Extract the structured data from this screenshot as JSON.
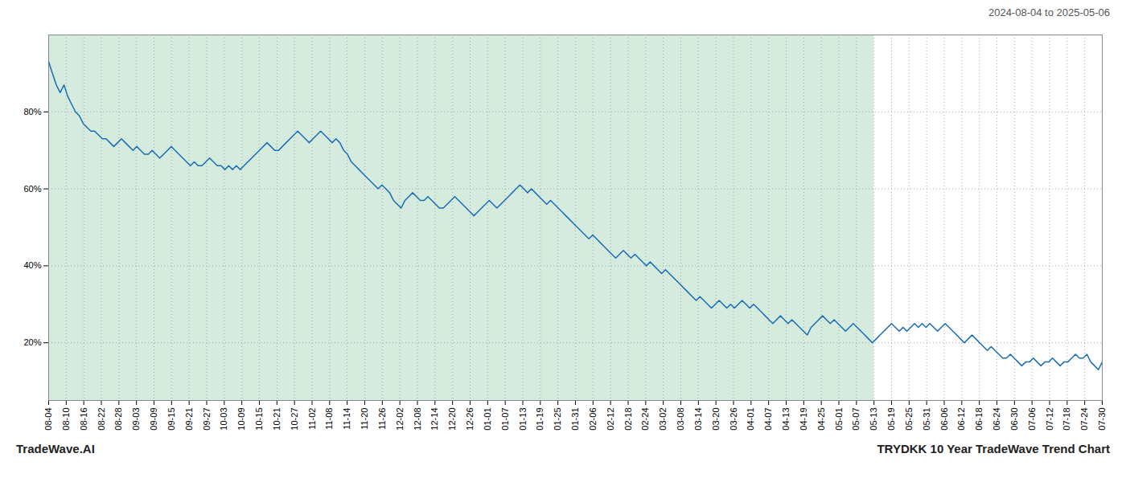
{
  "chart_data": {
    "type": "line",
    "title": "TRYDKK 10 Year TradeWave Trend Chart",
    "subtitle": "2024-08-04 to 2025-05-06",
    "annotation": "TradeWave.AI",
    "color": "#1a6db5",
    "grid": true,
    "ylim": [
      5,
      100
    ],
    "yticks": [
      {
        "value": 20,
        "label": "20%"
      },
      {
        "value": 40,
        "label": "40%"
      },
      {
        "value": 60,
        "label": "60%"
      },
      {
        "value": 80,
        "label": "80%"
      }
    ],
    "xticks": [
      "08-04",
      "08-10",
      "08-16",
      "08-22",
      "08-28",
      "09-03",
      "09-09",
      "09-15",
      "09-21",
      "09-27",
      "10-03",
      "10-09",
      "10-15",
      "10-21",
      "10-27",
      "11-02",
      "11-08",
      "11-14",
      "11-20",
      "11-26",
      "12-02",
      "12-08",
      "12-14",
      "12-20",
      "12-26",
      "01-01",
      "01-07",
      "01-13",
      "01-19",
      "01-25",
      "01-31",
      "02-06",
      "02-12",
      "02-18",
      "02-24",
      "03-02",
      "03-08",
      "03-14",
      "03-20",
      "03-26",
      "04-01",
      "04-07",
      "04-13",
      "04-19",
      "04-25",
      "05-01",
      "05-07",
      "05-13",
      "05-19",
      "05-25",
      "05-31",
      "06-06",
      "06-12",
      "06-18",
      "06-24",
      "06-30",
      "07-06",
      "07-12",
      "07-18",
      "07-24",
      "07-30"
    ],
    "shaded_span": {
      "from": "08-04",
      "to": "05-13",
      "color": "#cce8d8"
    },
    "values": [
      93,
      90,
      87,
      85,
      87,
      84,
      82,
      80,
      79,
      77,
      76,
      75,
      75,
      74,
      73,
      73,
      72,
      71,
      72,
      73,
      72,
      71,
      70,
      71,
      70,
      69,
      69,
      70,
      69,
      68,
      69,
      70,
      71,
      70,
      69,
      68,
      67,
      66,
      67,
      66,
      66,
      67,
      68,
      67,
      66,
      66,
      65,
      66,
      65,
      66,
      65,
      66,
      67,
      68,
      69,
      70,
      71,
      72,
      71,
      70,
      70,
      71,
      72,
      73,
      74,
      75,
      74,
      73,
      72,
      73,
      74,
      75,
      74,
      73,
      72,
      73,
      72,
      70,
      69,
      67,
      66,
      65,
      64,
      63,
      62,
      61,
      60,
      61,
      60,
      59,
      57,
      56,
      55,
      57,
      58,
      59,
      58,
      57,
      57,
      58,
      57,
      56,
      55,
      55,
      56,
      57,
      58,
      57,
      56,
      55,
      54,
      53,
      54,
      55,
      56,
      57,
      56,
      55,
      56,
      57,
      58,
      59,
      60,
      61,
      60,
      59,
      60,
      59,
      58,
      57,
      56,
      57,
      56,
      55,
      54,
      53,
      52,
      51,
      50,
      49,
      48,
      47,
      48,
      47,
      46,
      45,
      44,
      43,
      42,
      43,
      44,
      43,
      42,
      43,
      42,
      41,
      40,
      41,
      40,
      39,
      38,
      39,
      38,
      37,
      36,
      35,
      34,
      33,
      32,
      31,
      32,
      31,
      30,
      29,
      30,
      31,
      30,
      29,
      30,
      29,
      30,
      31,
      30,
      29,
      30,
      29,
      28,
      27,
      26,
      25,
      26,
      27,
      26,
      25,
      26,
      25,
      24,
      23,
      22,
      24,
      25,
      26,
      27,
      26,
      25,
      26,
      25,
      24,
      23,
      24,
      25,
      24,
      23,
      22,
      21,
      20,
      21,
      22,
      23,
      24,
      25,
      24,
      23,
      24,
      23,
      24,
      25,
      24,
      25,
      24,
      25,
      24,
      23,
      24,
      25,
      24,
      23,
      22,
      21,
      20,
      21,
      22,
      21,
      20,
      19,
      18,
      19,
      18,
      17,
      16,
      16,
      17,
      16,
      15,
      14,
      15,
      15,
      16,
      15,
      14,
      15,
      15,
      16,
      15,
      14,
      15,
      15,
      16,
      17,
      16,
      16,
      17,
      15,
      14,
      13,
      15
    ]
  }
}
